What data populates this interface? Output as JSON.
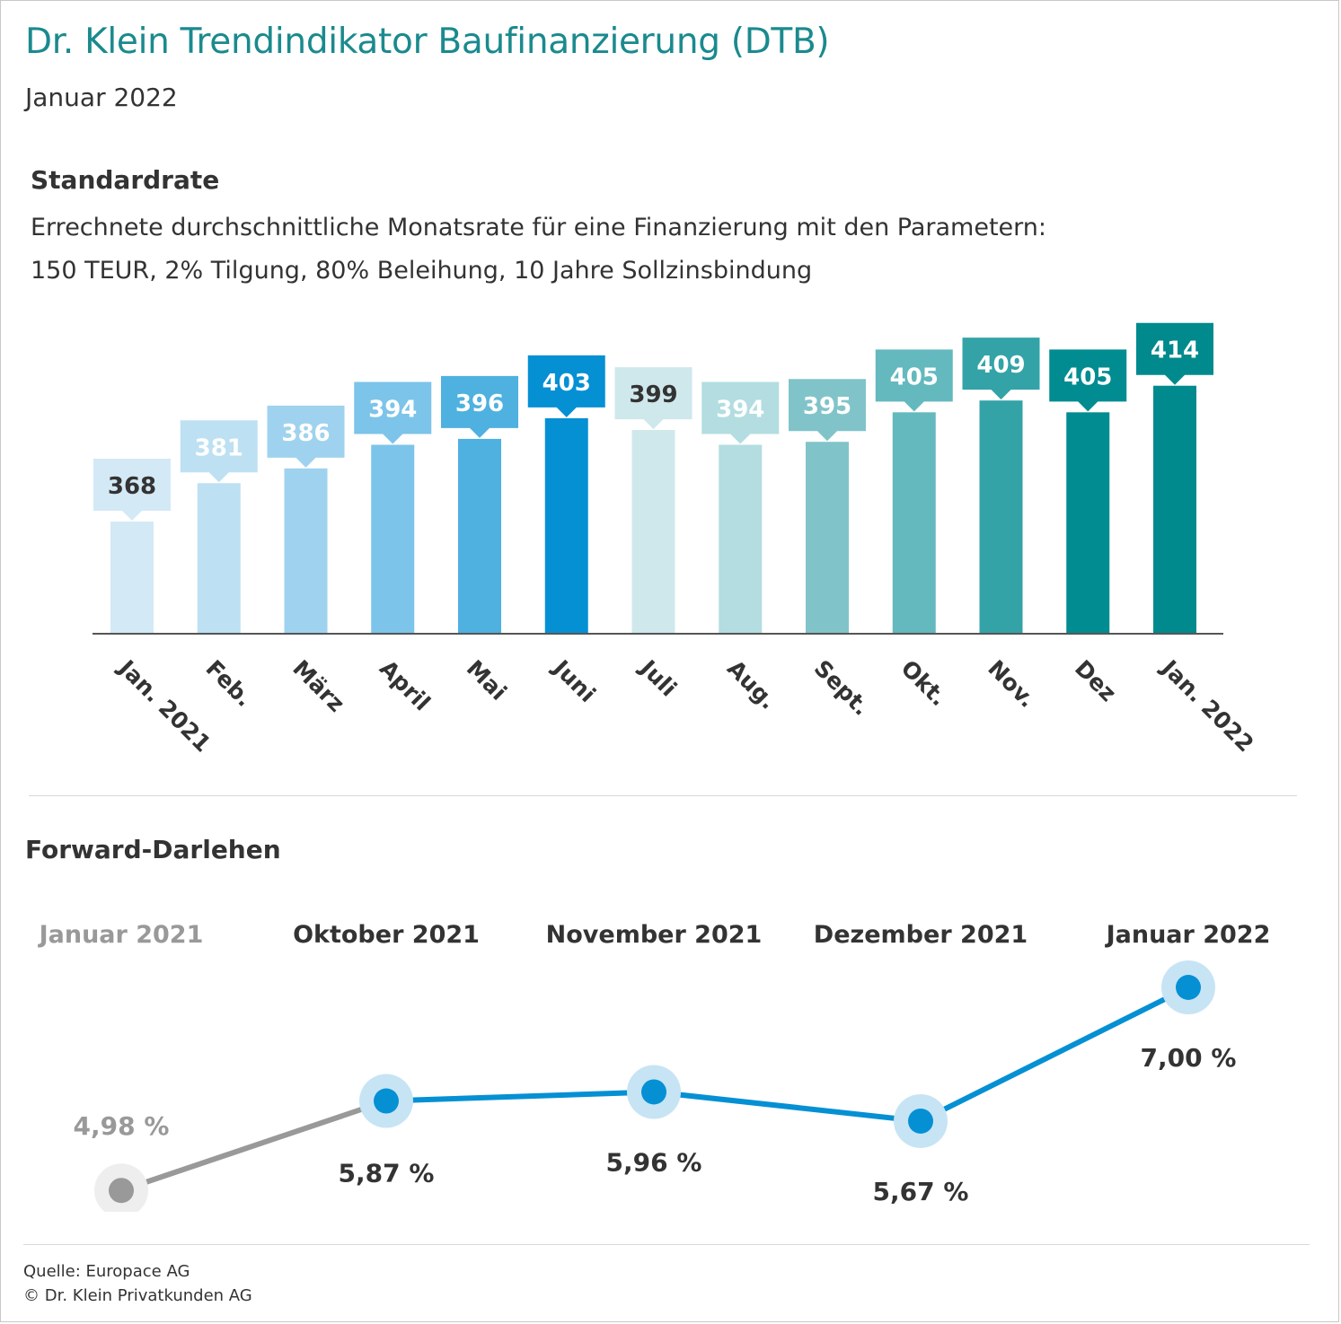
{
  "header": {
    "title": "Dr. Klein Trendindikator Baufinanzierung (DTB)",
    "subtitle": "Januar 2022"
  },
  "standardrate": {
    "heading": "Standardrate",
    "description_line1": "Errechnete durchschnittliche Monatsrate für eine Finanzierung mit den Parametern:",
    "description_line2": "150 TEUR, 2% Tilgung, 80% Beleihung, 10 Jahre Sollzinsbindung"
  },
  "forward": {
    "heading": "Forward-Darlehen"
  },
  "footer": {
    "source": "Quelle: Europace AG",
    "copyright": "© Dr. Klein Privatkunden AG"
  },
  "chart_data": [
    {
      "type": "bar",
      "title": "Standardrate",
      "categories": [
        "Jan. 2021",
        "Feb.",
        "März",
        "April",
        "Mai",
        "Juni",
        "Juli",
        "Aug.",
        "Sept.",
        "Okt.",
        "Nov.",
        "Dez",
        "Jan. 2022"
      ],
      "values": [
        368,
        381,
        386,
        394,
        396,
        403,
        399,
        394,
        395,
        405,
        409,
        405,
        414
      ],
      "value_labels": [
        "368",
        "381",
        "386",
        "394",
        "396",
        "403",
        "399",
        "394",
        "395",
        "405",
        "409",
        "405",
        "414"
      ],
      "colors": [
        "#d3e9f6",
        "#bde0f3",
        "#9fd2ee",
        "#7cc4e9",
        "#4eb1e0",
        "#0590d4",
        "#cfe8ec",
        "#b3dde0",
        "#80c4c9",
        "#63b9bd",
        "#33a3a8",
        "#008c90",
        "#008a8e"
      ],
      "label_text_colors": [
        "#333333",
        "#ffffff",
        "#ffffff",
        "#ffffff",
        "#ffffff",
        "#ffffff",
        "#333333",
        "#ffffff",
        "#ffffff",
        "#ffffff",
        "#ffffff",
        "#ffffff",
        "#ffffff"
      ],
      "ylim": [
        330,
        420
      ],
      "grid": false,
      "legend": "none"
    },
    {
      "type": "line",
      "title": "Forward-Darlehen",
      "categories": [
        "Januar 2021",
        "Oktober 2021",
        "November 2021",
        "Dezember 2021",
        "Januar 2022"
      ],
      "values": [
        4.98,
        5.87,
        5.96,
        5.67,
        7.0
      ],
      "value_labels": [
        "4,98 %",
        "5,87 %",
        "5,96 %",
        "5,67 %",
        "7,00 %"
      ],
      "line_color": "#0590d4",
      "reference_color": "#999999",
      "highlight_halo": "#c7e4f5",
      "reference_halo": "#eeeeee",
      "grid": false,
      "legend": "none"
    }
  ]
}
